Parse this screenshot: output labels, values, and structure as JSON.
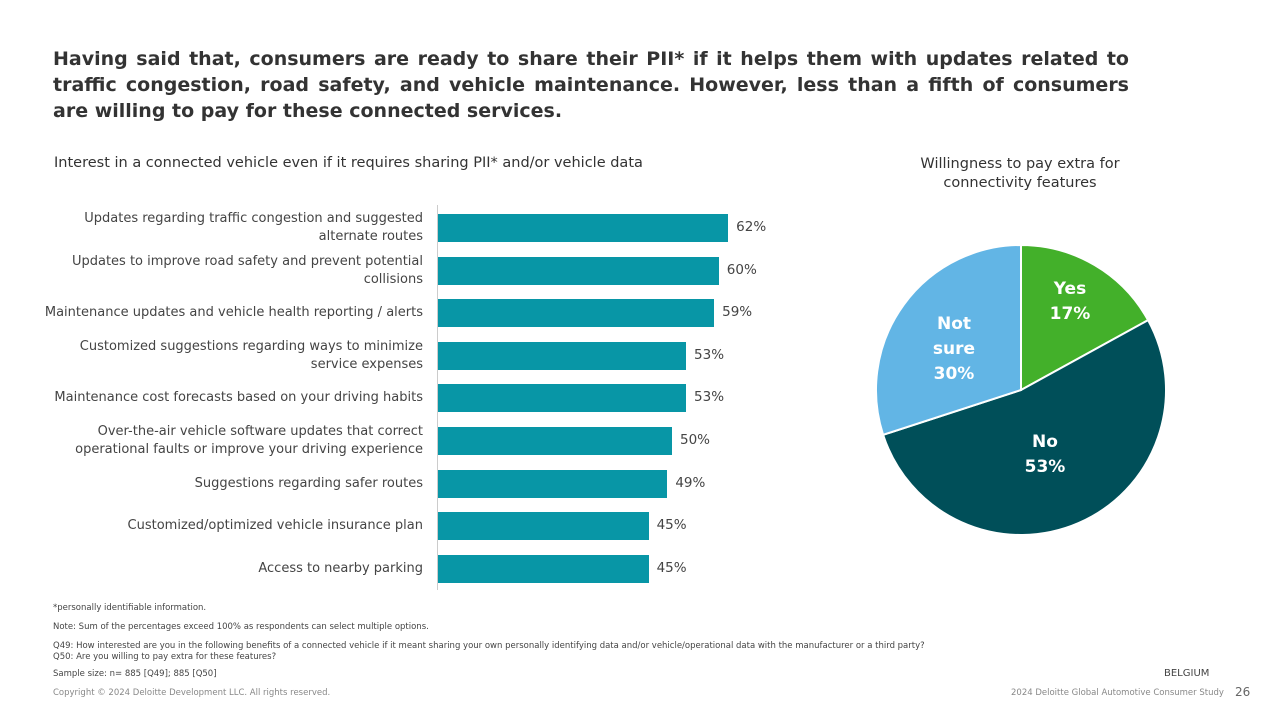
{
  "slide": {
    "title": "Having said that, consumers are ready to share their PII* if it helps them with updates related to traffic congestion, road safety, and vehicle maintenance. However, less than a fifth of consumers are willing to pay for these connected services.",
    "footnotes": [
      "*personally identifiable information.",
      "Note: Sum of the percentages exceed 100% as respondents can select multiple options.",
      "Q49: How interested are you in the following benefits of a connected vehicle if it meant sharing your own personally identifying data and/or vehicle/operational data with the manufacturer or a third party?",
      "Q50: Are you willing to pay extra for these features?",
      "Sample size: n= 885 [Q49]; 885 [Q50]"
    ],
    "copyright": "Copyright © 2024 Deloitte Development LLC. All rights reserved.",
    "country": "BELGIUM",
    "study": "2024 Deloitte Global Automotive Consumer Study",
    "page_number": "26"
  },
  "chart_data": [
    {
      "type": "bar",
      "orientation": "horizontal",
      "title": "Interest in a connected vehicle even if it requires sharing PII* and/or vehicle data",
      "categories": [
        "Updates regarding traffic congestion and suggested alternate routes",
        "Updates to improve road safety and prevent potential collisions",
        "Maintenance updates and vehicle health reporting / alerts",
        "Customized suggestions regarding ways to minimize service expenses",
        "Maintenance cost forecasts based on your driving habits",
        "Over-the-air vehicle software updates that correct operational faults or improve your driving experience",
        "Suggestions regarding safer routes",
        "Customized/optimized vehicle insurance plan",
        "Access to nearby parking"
      ],
      "values": [
        62,
        60,
        59,
        53,
        53,
        50,
        49,
        45,
        45
      ],
      "value_labels": [
        "62%",
        "60%",
        "59%",
        "53%",
        "53%",
        "50%",
        "49%",
        "45%",
        "45%"
      ],
      "color": "#0896a6"
    },
    {
      "type": "pie",
      "title": "Willingness to pay extra for connectivity features",
      "categories": [
        "Yes",
        "No",
        "Not sure"
      ],
      "values": [
        17,
        53,
        30
      ],
      "value_labels": [
        "17%",
        "53%",
        "30%"
      ],
      "colors": [
        "#43b02a",
        "#004f59",
        "#62b5e5"
      ]
    }
  ]
}
